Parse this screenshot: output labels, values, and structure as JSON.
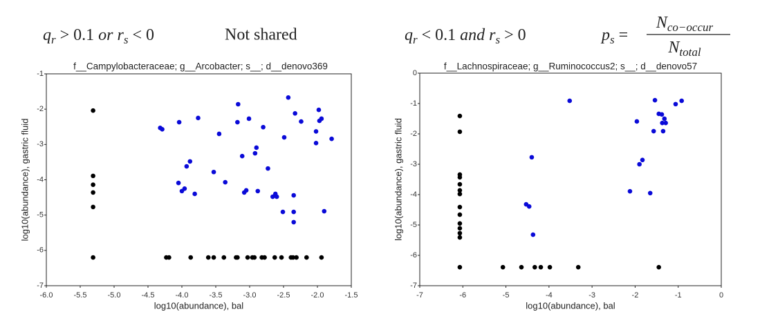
{
  "header": {
    "left_formula": [
      {
        "text": "q",
        "italic": true
      },
      {
        "text": "r",
        "italic": true,
        "sub": true
      },
      {
        "text": " > 0.1 "
      },
      {
        "text": "or ",
        "italic": true
      },
      {
        "text": "r",
        "italic": true
      },
      {
        "text": "s",
        "italic": true,
        "sub": true
      },
      {
        "text": " < 0"
      }
    ],
    "left_label": "Not shared",
    "right_formula": [
      {
        "text": "q",
        "italic": true
      },
      {
        "text": "r",
        "italic": true,
        "sub": true
      },
      {
        "text": " < 0.1 "
      },
      {
        "text": "and ",
        "italic": true
      },
      {
        "text": "r",
        "italic": true
      },
      {
        "text": "s",
        "italic": true,
        "sub": true
      },
      {
        "text": " > 0"
      }
    ],
    "ps_lhs": [
      {
        "text": "p",
        "italic": true
      },
      {
        "text": "s",
        "italic": true,
        "sub": true
      },
      {
        "text": " ="
      }
    ],
    "ps_numerator": [
      {
        "text": "N",
        "italic": true
      },
      {
        "text": "co−occur",
        "italic": true,
        "sub": true
      }
    ],
    "ps_denominator": [
      {
        "text": "N",
        "italic": true
      },
      {
        "text": "total",
        "italic": true,
        "sub": true
      }
    ]
  },
  "chart_data": [
    {
      "type": "scatter",
      "title": "f__Campylobacteraceae; g__Arcobacter; s__; d__denovo369",
      "xlabel": "log10(abundance), bal",
      "ylabel": "log10(abundance), gastric fluid",
      "xlim": [
        -6,
        -1.5
      ],
      "ylim": [
        -7,
        -1
      ],
      "xticks": [
        {
          "value": -6,
          "label": "-6.0"
        },
        -5.5,
        {
          "value": -5,
          "label": "-5.0"
        },
        -4.5,
        {
          "value": -4,
          "label": "-4.0"
        },
        -3.5,
        {
          "value": -3,
          "label": "-3.0"
        },
        -2.5,
        {
          "value": -2,
          "label": "-2.0"
        },
        -1.5
      ],
      "yticks": [
        -7,
        -6,
        -5,
        -4,
        -3,
        -2,
        -1
      ],
      "series": [
        {
          "color": "#000000",
          "x": [
            -5.31,
            -5.31,
            -5.31,
            -5.31,
            -5.31,
            -5.31,
            -4.23,
            -4.19,
            -3.87,
            -3.61,
            -3.53,
            -3.38,
            -3.2,
            -3.18,
            -3.03,
            -2.96,
            -2.93,
            -2.82,
            -2.78,
            -2.63,
            -2.53,
            -2.39,
            -2.36,
            -2.31,
            -2.16,
            -1.94
          ],
          "values": [
            -2.04,
            -3.89,
            -4.14,
            -4.36,
            -4.77,
            -6.2,
            -6.2,
            -6.2,
            -6.2,
            -6.2,
            -6.2,
            -6.2,
            -6.2,
            -6.2,
            -6.2,
            -6.2,
            -6.2,
            -6.2,
            -6.2,
            -6.2,
            -6.2,
            -6.2,
            -6.2,
            -6.2,
            -6.2,
            -6.2
          ]
        },
        {
          "color": "#0a0ad8",
          "x": [
            -4.32,
            -4.29,
            -4.04,
            -3.76,
            -3.17,
            -3.01,
            -3.18,
            -3.45,
            -2.8,
            -2.43,
            -2.33,
            -2.24,
            -1.98,
            -1.94,
            -1.97,
            -2.02,
            -2.02,
            -1.79,
            -2.49,
            -2.9,
            -2.92,
            -3.11,
            -2.73,
            -3.53,
            -3.36,
            -3.88,
            -3.93,
            -4.05,
            -4.0,
            -3.96,
            -3.81,
            -3.08,
            -3.05,
            -2.88,
            -2.62,
            -2.66,
            -2.6,
            -2.35,
            -2.51,
            -2.35,
            -2.35,
            -1.9
          ],
          "values": [
            -2.53,
            -2.57,
            -2.37,
            -2.25,
            -1.86,
            -2.27,
            -2.37,
            -2.7,
            -2.51,
            -1.67,
            -2.12,
            -2.35,
            -2.02,
            -2.27,
            -2.33,
            -2.63,
            -2.96,
            -2.84,
            -2.8,
            -3.09,
            -3.25,
            -3.33,
            -3.68,
            -3.78,
            -4.07,
            -3.48,
            -3.62,
            -4.09,
            -4.32,
            -4.25,
            -4.4,
            -4.36,
            -4.3,
            -4.32,
            -4.4,
            -4.48,
            -4.48,
            -4.44,
            -4.91,
            -4.91,
            -5.2,
            -4.89
          ]
        }
      ]
    },
    {
      "type": "scatter",
      "title": "f__Lachnospiraceae; g__Ruminococcus2; s__; d__denovo57",
      "xlabel": "log10(abundance), bal",
      "ylabel": "log10(abundance), gastric fluid",
      "xlim": [
        -7,
        0
      ],
      "ylim": [
        -7,
        0
      ],
      "xticks": [
        -7,
        -6,
        -5,
        -4,
        -3,
        -2,
        -1,
        0
      ],
      "yticks": [
        -7,
        -6,
        -5,
        -4,
        -3,
        -2,
        -1,
        0
      ],
      "series": [
        {
          "color": "#000000",
          "x": [
            -6.07,
            -6.07,
            -6.07,
            -6.07,
            -6.07,
            -6.07,
            -6.07,
            -6.07,
            -6.07,
            -6.07,
            -6.07,
            -6.07,
            -6.07,
            -6.07,
            -5.07,
            -4.64,
            -4.33,
            -4.19,
            -3.98,
            -3.32,
            -1.45
          ],
          "values": [
            -1.41,
            -1.93,
            -3.34,
            -3.43,
            -3.66,
            -3.86,
            -3.98,
            -4.41,
            -4.66,
            -4.95,
            -5.11,
            -5.27,
            -5.41,
            -6.39,
            -6.39,
            -6.39,
            -6.39,
            -6.39,
            -6.39,
            -6.39,
            -6.39
          ]
        },
        {
          "color": "#0a0ad8",
          "x": [
            -3.52,
            -1.54,
            -1.06,
            -0.92,
            -1.45,
            -1.38,
            -1.32,
            -1.37,
            -1.29,
            -1.35,
            -1.57,
            -1.96,
            -1.83,
            -1.9,
            -1.65,
            -2.12,
            -4.4,
            -4.53,
            -4.46,
            -4.37
          ],
          "values": [
            -0.91,
            -0.89,
            -1.02,
            -0.91,
            -1.34,
            -1.36,
            -1.5,
            -1.64,
            -1.64,
            -1.91,
            -1.91,
            -1.59,
            -2.86,
            -3.0,
            -3.95,
            -3.89,
            -2.77,
            -4.32,
            -4.39,
            -5.32
          ]
        }
      ]
    }
  ]
}
